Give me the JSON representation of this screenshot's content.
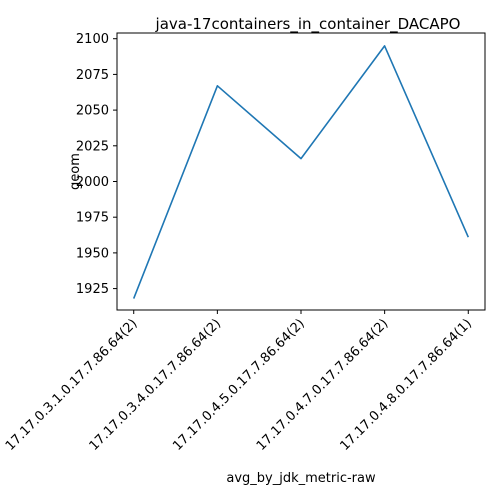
{
  "chart_data": {
    "type": "line",
    "title": "java-17containers_in_container_DACAPO",
    "xlabel": "avg_by_jdk_metric-raw",
    "ylabel": "geom",
    "categories": [
      "17.17.0.3.1.0.17.7.86.64(2)",
      "17.17.0.3.4.0.17.7.86.64(2)",
      "17.17.0.4.5.0.17.7.86.64(2)",
      "17.17.0.4.7.0.17.7.86.64(2)",
      "17.17.0.4.8.0.17.7.86.64(1)"
    ],
    "series": [
      {
        "values": [
          1918,
          2067,
          2016,
          2095,
          1961
        ],
        "color": "#1f77b4"
      }
    ],
    "ylim": [
      1910,
      2104
    ],
    "yticks": [
      1925,
      1950,
      1975,
      2000,
      2025,
      2050,
      2075,
      2100
    ],
    "grid": false,
    "legend": "none"
  }
}
